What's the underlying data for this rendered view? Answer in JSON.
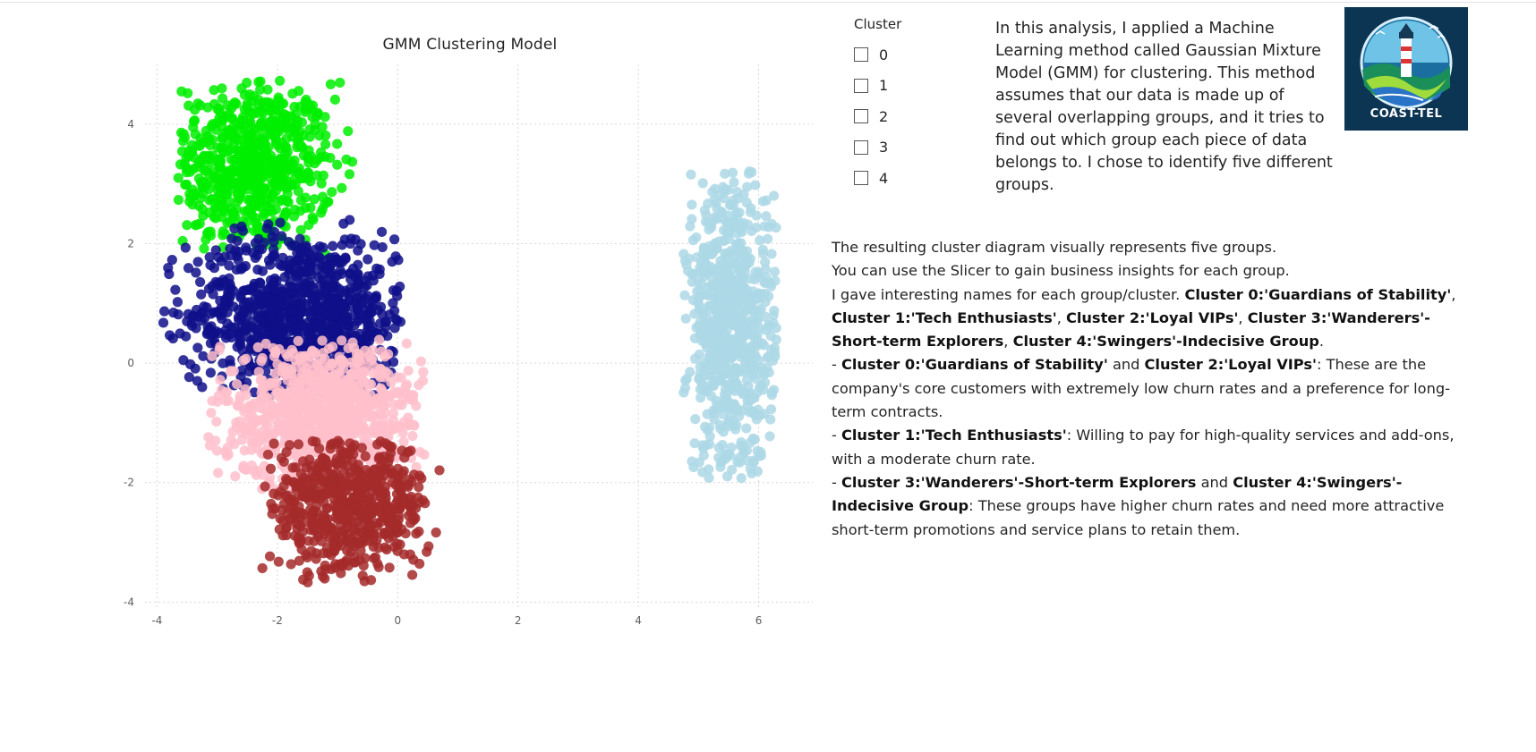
{
  "chart_data": {
    "type": "scatter",
    "title": "GMM Clustering Model",
    "xlabel": "",
    "ylabel": "",
    "xlim": [
      -4.2,
      6.9
    ],
    "ylim": [
      -4.1,
      5.0
    ],
    "xticks": [
      -4,
      -2,
      0,
      2,
      4,
      6
    ],
    "yticks": [
      -4,
      -2,
      0,
      2,
      4
    ],
    "grid": true,
    "legend": "none",
    "series": [
      {
        "color": "#00ee00",
        "center": [
          -2.45,
          3.3
        ],
        "region": {
          "x": [
            -3.65,
            -0.75
          ],
          "y": [
            1.8,
            4.75
          ]
        },
        "count": 650
      },
      {
        "color": "#0f0f8a",
        "center": [
          -1.6,
          0.8
        ],
        "region": {
          "x": [
            -3.9,
            0.05
          ],
          "y": [
            -0.55,
            2.4
          ]
        },
        "count": 950
      },
      {
        "color": "#ffc0cb",
        "center": [
          -1.2,
          -0.85
        ],
        "region": {
          "x": [
            -3.2,
            0.45
          ],
          "y": [
            -2.15,
            0.4
          ]
        },
        "count": 900
      },
      {
        "color": "#a52a2a",
        "center": [
          -0.85,
          -2.4
        ],
        "region": {
          "x": [
            -2.25,
            0.7
          ],
          "y": [
            -3.7,
            -1.3
          ]
        },
        "count": 600
      },
      {
        "color": "#add8e6",
        "center": [
          5.55,
          0.6
        ],
        "region": {
          "x": [
            4.75,
            6.3
          ],
          "y": [
            -1.95,
            3.25
          ]
        },
        "count": 750
      }
    ]
  },
  "slicer": {
    "title": "Cluster",
    "options": [
      "0",
      "1",
      "2",
      "3",
      "4"
    ]
  },
  "intro": "In this analysis, I applied a Machine Learning method called Gaussian Mixture Model (GMM) for clustering. This method assumes that our data is made up of several overlapping groups, and it tries to find out which group each piece of data belongs to. I chose to identify five different groups.",
  "logo": {
    "text": "COAST-TEL"
  },
  "description": {
    "line1": "The resulting cluster diagram visually represents five groups.",
    "line2": "You can use the Slicer to gain business insights for each group.",
    "line3_prefix": "I gave interesting names for each group/cluster. ",
    "c0_full": "Cluster 0:'Guardians of Stability'",
    "c1_full": "Cluster 1:'Tech Enthusiasts'",
    "c2_full": "Cluster 2:'Loyal VIPs'",
    "c3_full": "Cluster 3:'Wanderers'-Short-term Explorers",
    "c4_full": "Cluster 4:'Swingers'-Indecisive Group",
    "sep": ", ",
    "period": ".",
    "dash": "- ",
    "and": " and ",
    "b1_text": ": These are the company's core customers with extremely low churn rates and a preference for long-term contracts.",
    "b2_text": ": Willing to pay for high-quality services and add-ons, with a moderate churn rate.",
    "b3_text": ": These groups have higher churn rates and need more attractive short-term promotions and service plans to retain them."
  }
}
